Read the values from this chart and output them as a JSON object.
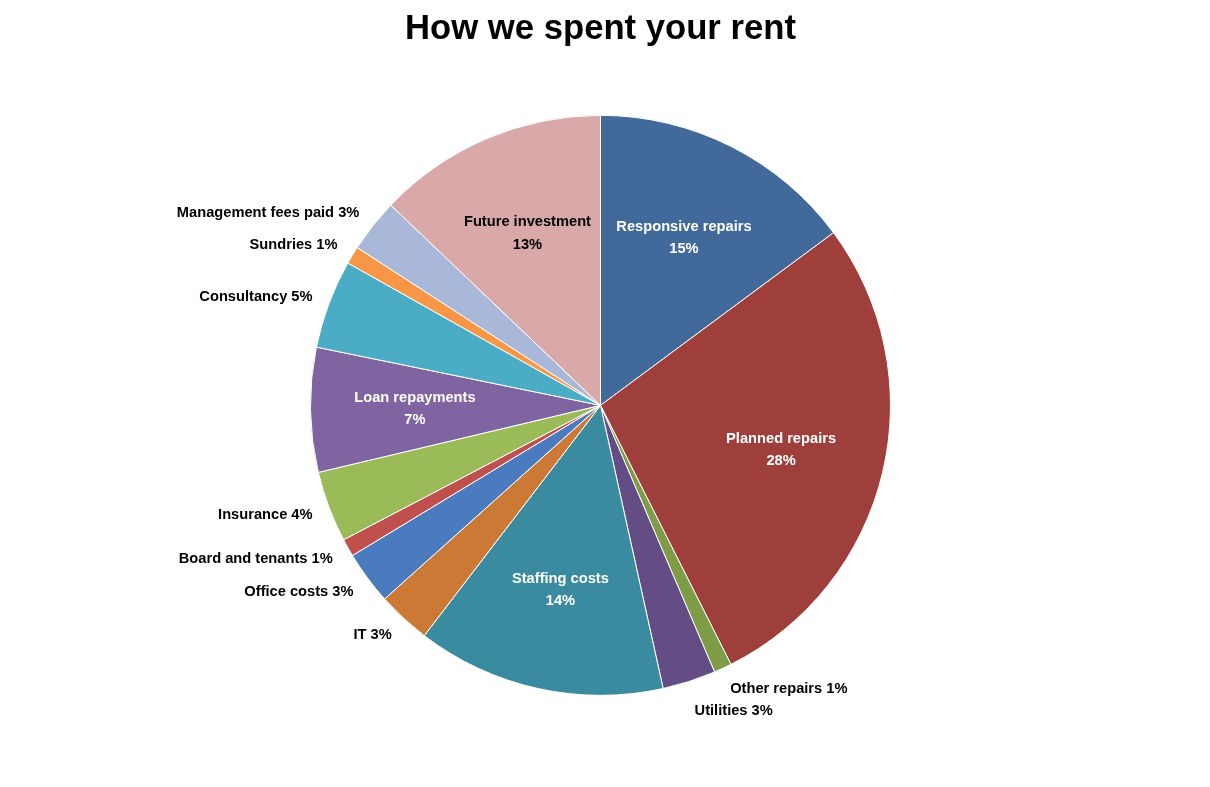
{
  "chart_data": {
    "type": "pie",
    "title": "How we spent your rent",
    "categories": [
      "Responsive repairs",
      "Planned repairs",
      "Other repairs",
      "Utilities",
      "Staffing costs",
      "IT",
      "Office costs",
      "Board and tenants",
      "Insurance",
      "Loan repayments",
      "Consultancy",
      "Sundries",
      "Management fees paid",
      "Future investment"
    ],
    "values": [
      15,
      28,
      1,
      3,
      14,
      3,
      3,
      1,
      4,
      7,
      5,
      1,
      3,
      13
    ],
    "value_labels": [
      "15%",
      "28%",
      "1%",
      "3%",
      "14%",
      "3%",
      "3%",
      "1%",
      "4%",
      "7%",
      "5%",
      "1%",
      "3%",
      "13%"
    ],
    "colors": [
      "#41699a",
      "#9e3f3c",
      "#7e9b45",
      "#634d84",
      "#3a8ba0",
      "#cd7936",
      "#4a7bbf",
      "#c0504d",
      "#9bbb59",
      "#8064a2",
      "#4bacc6",
      "#f79646",
      "#a9b8d8",
      "#d8a9a8"
    ]
  }
}
